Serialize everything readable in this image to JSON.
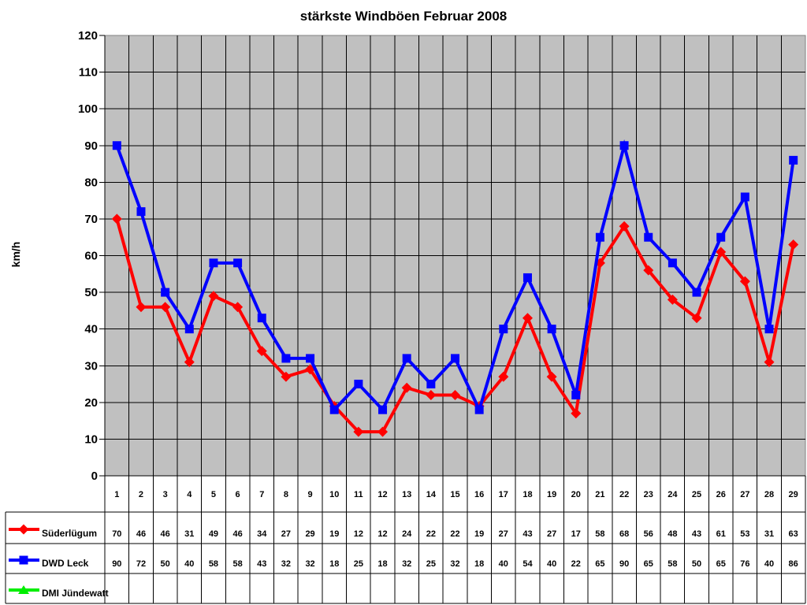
{
  "chart_data": {
    "type": "line",
    "title": "stärkste Windböen Februar 2008",
    "ylabel": "km/h",
    "ylim": [
      0,
      120
    ],
    "ytick_step": 10,
    "grid": true,
    "plot_background": "#C0C0C0",
    "gridline_color": "#000000",
    "plot_border_color": "#808080",
    "legend_position": "table-left",
    "categories": [
      1,
      2,
      3,
      4,
      5,
      6,
      7,
      8,
      9,
      10,
      11,
      12,
      13,
      14,
      15,
      16,
      17,
      18,
      19,
      20,
      21,
      22,
      23,
      24,
      25,
      26,
      27,
      28,
      29
    ],
    "series": [
      {
        "name": "Süderlügum",
        "color": "#FF0000",
        "marker": "diamond",
        "values": [
          70,
          46,
          46,
          31,
          49,
          46,
          34,
          27,
          29,
          19,
          12,
          12,
          24,
          22,
          22,
          19,
          27,
          43,
          27,
          17,
          58,
          68,
          56,
          48,
          43,
          61,
          53,
          31,
          63
        ]
      },
      {
        "name": "DWD Leck",
        "color": "#0000FF",
        "marker": "square",
        "values": [
          90,
          72,
          50,
          40,
          58,
          58,
          43,
          32,
          32,
          18,
          25,
          18,
          32,
          25,
          32,
          18,
          40,
          54,
          40,
          22,
          65,
          90,
          65,
          58,
          50,
          65,
          76,
          40,
          86
        ]
      },
      {
        "name": "DMI Jündewatt",
        "color": "#00EE00",
        "marker": "triangle",
        "values": []
      }
    ]
  }
}
